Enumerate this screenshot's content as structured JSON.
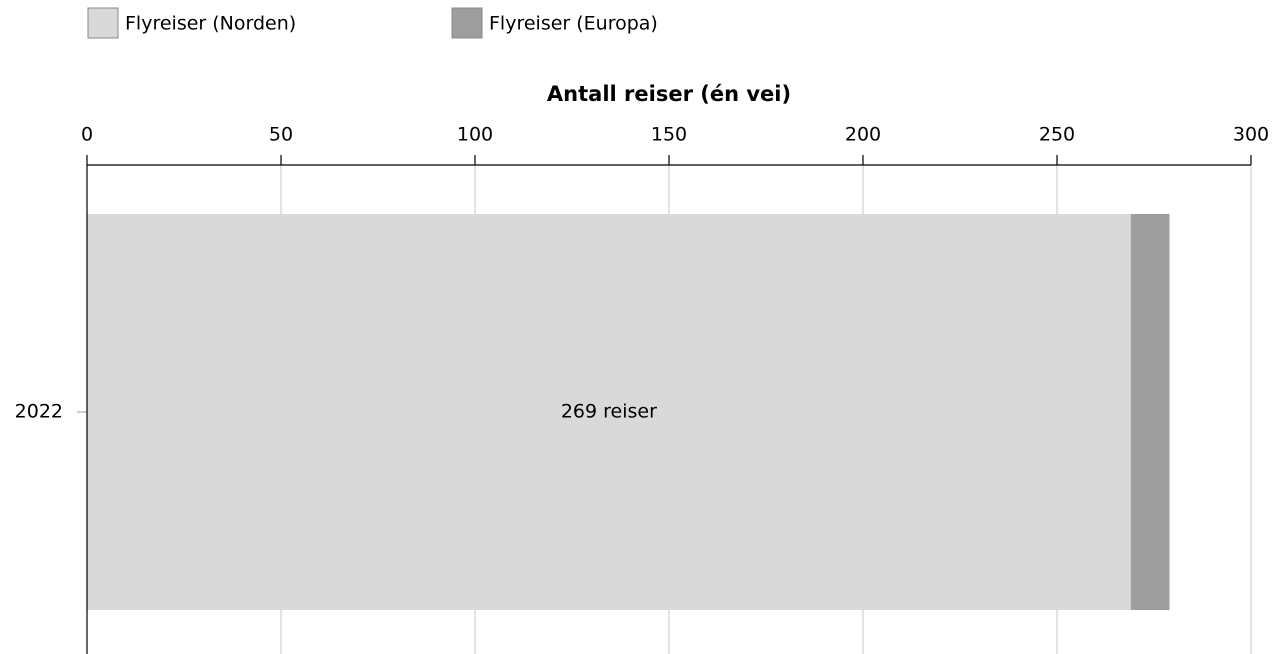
{
  "chart_data": {
    "type": "bar",
    "orientation": "horizontal",
    "stacked": true,
    "x_label": "Antall reiser (én vei)",
    "categories": [
      "2022"
    ],
    "series": [
      {
        "name": "Flyreiser (Norden)",
        "color": "#d9d9d9",
        "values": [
          269
        ],
        "value_labels": [
          "269 reiser"
        ]
      },
      {
        "name": "Flyreiser (Europa)",
        "color": "#9e9e9e",
        "values": [
          10
        ]
      }
    ],
    "xlim": [
      0,
      300
    ],
    "xticks": [
      0,
      50,
      100,
      150,
      200,
      250,
      300
    ],
    "grid": true,
    "legend": "top"
  }
}
